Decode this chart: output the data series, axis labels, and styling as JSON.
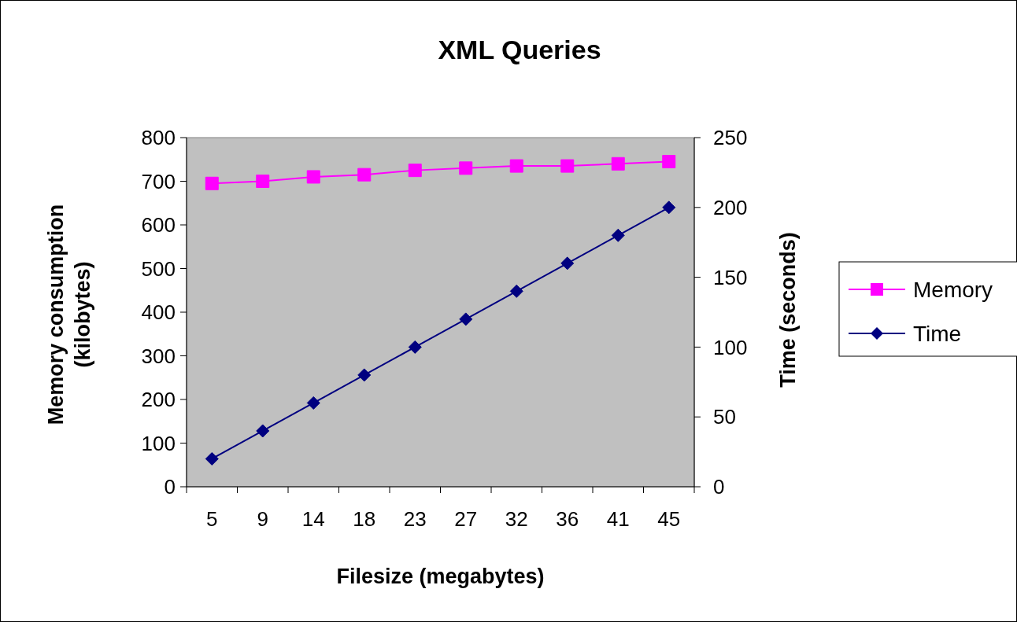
{
  "chart_data": {
    "type": "line",
    "title": "XML Queries",
    "xlabel": "Filesize (megabytes)",
    "ylabel": "Memory consumption\n(kilobytes)",
    "y2label": "Time (seconds)",
    "categories": [
      "5",
      "9",
      "14",
      "18",
      "23",
      "27",
      "32",
      "36",
      "41",
      "45"
    ],
    "series": [
      {
        "name": "Memory",
        "color": "#ff00ff",
        "marker": "square",
        "values": [
          695,
          700,
          710,
          715,
          725,
          730,
          735,
          735,
          740,
          745
        ]
      },
      {
        "name": "Time",
        "color": "#000080",
        "marker": "diamond",
        "axis": "y2",
        "values": [
          20,
          40,
          60,
          80,
          100,
          120,
          140,
          160,
          180,
          200
        ]
      }
    ],
    "ylim": [
      0,
      800
    ],
    "yticks": [
      0,
      100,
      200,
      300,
      400,
      500,
      600,
      700,
      800
    ],
    "y2lim": [
      0,
      250
    ],
    "y2ticks": [
      0,
      50,
      100,
      150,
      200,
      250
    ],
    "grid": false,
    "legend": "right"
  }
}
